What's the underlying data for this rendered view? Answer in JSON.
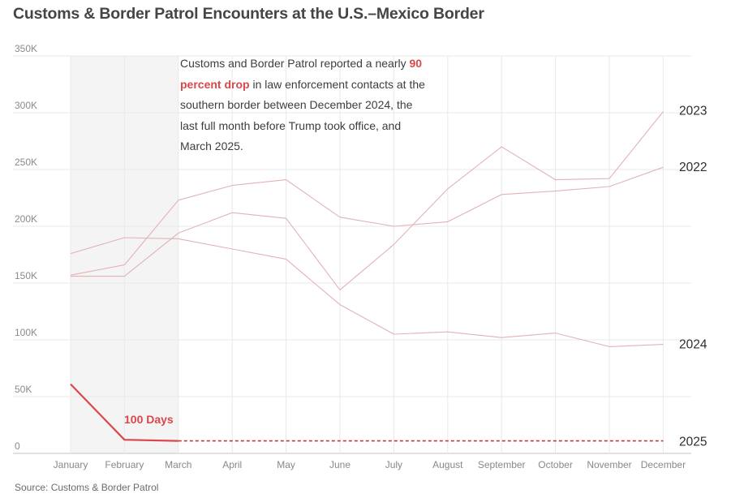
{
  "title": "Customs & Border Patrol Encounters at the U.S.–Mexico Border",
  "source": "Source: Customs & Border Patrol",
  "annotation": {
    "before": "Customs and Border Patrol reported a nearly ",
    "highlight": "90 percent drop",
    "after": " in law enforcement contacts at the southern border between December 2024, the last full month before Trump took office, and March 2025."
  },
  "colors": {
    "accent": "#d9474b",
    "past_years": "#e2b3b6",
    "band": "#f4f4f4",
    "grid": "#e9e9e9"
  },
  "chart_data": {
    "type": "line",
    "title": "Customs & Border Patrol Encounters at the U.S.–Mexico Border",
    "xlabel": "",
    "ylabel": "",
    "categories": [
      "January",
      "February",
      "March",
      "April",
      "May",
      "June",
      "July",
      "August",
      "September",
      "October",
      "November",
      "December"
    ],
    "ylim": [
      0,
      350000
    ],
    "yticks": [
      0,
      50000,
      100000,
      150000,
      200000,
      250000,
      300000,
      350000
    ],
    "ytick_labels": [
      "0",
      "50K",
      "100K",
      "150K",
      "200K",
      "250K",
      "300K",
      "350K"
    ],
    "grid": true,
    "legend": "direct labels at right end of each line",
    "shaded_region": {
      "from": "January",
      "to": "March",
      "label": "100 Days"
    },
    "series": [
      {
        "name": "2022",
        "highlight": false,
        "values": [
          157000,
          166000,
          223000,
          236000,
          241000,
          208000,
          200000,
          204000,
          228000,
          231000,
          235000,
          252000
        ]
      },
      {
        "name": "2023",
        "highlight": false,
        "values": [
          156000,
          156000,
          194000,
          212000,
          207000,
          144000,
          184000,
          233000,
          270000,
          241000,
          242000,
          301000
        ]
      },
      {
        "name": "2024",
        "highlight": false,
        "values": [
          176000,
          190000,
          189000,
          180000,
          171000,
          131000,
          105000,
          107000,
          102000,
          106000,
          94000,
          96000
        ]
      },
      {
        "name": "2025",
        "highlight": true,
        "values": [
          61000,
          12000,
          11000
        ],
        "projection": {
          "value": 11000,
          "style": "dashed",
          "through": "December"
        }
      }
    ]
  }
}
